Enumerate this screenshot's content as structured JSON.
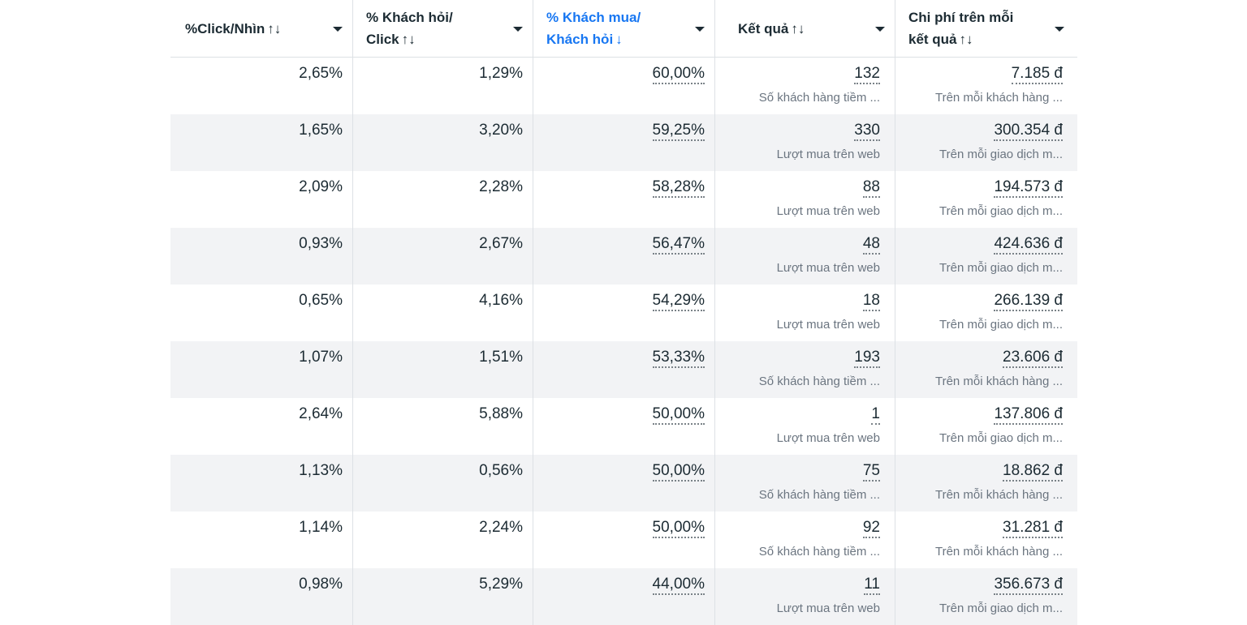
{
  "headers": [
    {
      "line1": "%Click/Nhìn",
      "line2": "",
      "sort": "↑↓"
    },
    {
      "line1": "% Khách hỏi/",
      "line2": "Click",
      "sort": "↑↓"
    },
    {
      "line1": "% Khách mua/",
      "line2": "Khách hỏi",
      "sort": "↓"
    },
    {
      "line1": "Kết quả",
      "line2": "",
      "sort": "↑↓"
    },
    {
      "line1": "Chi phí trên mỗi",
      "line2": "kết quả",
      "sort": "↑↓"
    }
  ],
  "active_color": "#1877f2",
  "rows": [
    {
      "click_rate": "2,65%",
      "inquiry_rate": "1,29%",
      "purchase_rate": "60,00%",
      "results": "132",
      "results_type": "Số khách hàng tiềm ...",
      "cost": "7.185 đ",
      "cost_type": "Trên mỗi khách hàng ..."
    },
    {
      "click_rate": "1,65%",
      "inquiry_rate": "3,20%",
      "purchase_rate": "59,25%",
      "results": "330",
      "results_type": "Lượt mua trên web",
      "cost": "300.354 đ",
      "cost_type": "Trên mỗi giao dịch m..."
    },
    {
      "click_rate": "2,09%",
      "inquiry_rate": "2,28%",
      "purchase_rate": "58,28%",
      "results": "88",
      "results_type": "Lượt mua trên web",
      "cost": "194.573 đ",
      "cost_type": "Trên mỗi giao dịch m..."
    },
    {
      "click_rate": "0,93%",
      "inquiry_rate": "2,67%",
      "purchase_rate": "56,47%",
      "results": "48",
      "results_type": "Lượt mua trên web",
      "cost": "424.636 đ",
      "cost_type": "Trên mỗi giao dịch m..."
    },
    {
      "click_rate": "0,65%",
      "inquiry_rate": "4,16%",
      "purchase_rate": "54,29%",
      "results": "18",
      "results_type": "Lượt mua trên web",
      "cost": "266.139 đ",
      "cost_type": "Trên mỗi giao dịch m..."
    },
    {
      "click_rate": "1,07%",
      "inquiry_rate": "1,51%",
      "purchase_rate": "53,33%",
      "results": "193",
      "results_type": "Số khách hàng tiềm ...",
      "cost": "23.606 đ",
      "cost_type": "Trên mỗi khách hàng ..."
    },
    {
      "click_rate": "2,64%",
      "inquiry_rate": "5,88%",
      "purchase_rate": "50,00%",
      "results": "1",
      "results_type": "Lượt mua trên web",
      "cost": "137.806 đ",
      "cost_type": "Trên mỗi giao dịch m..."
    },
    {
      "click_rate": "1,13%",
      "inquiry_rate": "0,56%",
      "purchase_rate": "50,00%",
      "results": "75",
      "results_type": "Số khách hàng tiềm ...",
      "cost": "18.862 đ",
      "cost_type": "Trên mỗi khách hàng ..."
    },
    {
      "click_rate": "1,14%",
      "inquiry_rate": "2,24%",
      "purchase_rate": "50,00%",
      "results": "92",
      "results_type": "Số khách hàng tiềm ...",
      "cost": "31.281 đ",
      "cost_type": "Trên mỗi khách hàng ..."
    },
    {
      "click_rate": "0,98%",
      "inquiry_rate": "5,29%",
      "purchase_rate": "44,00%",
      "results": "11",
      "results_type": "Lượt mua trên web",
      "cost": "356.673 đ",
      "cost_type": "Trên mỗi giao dịch m..."
    }
  ]
}
